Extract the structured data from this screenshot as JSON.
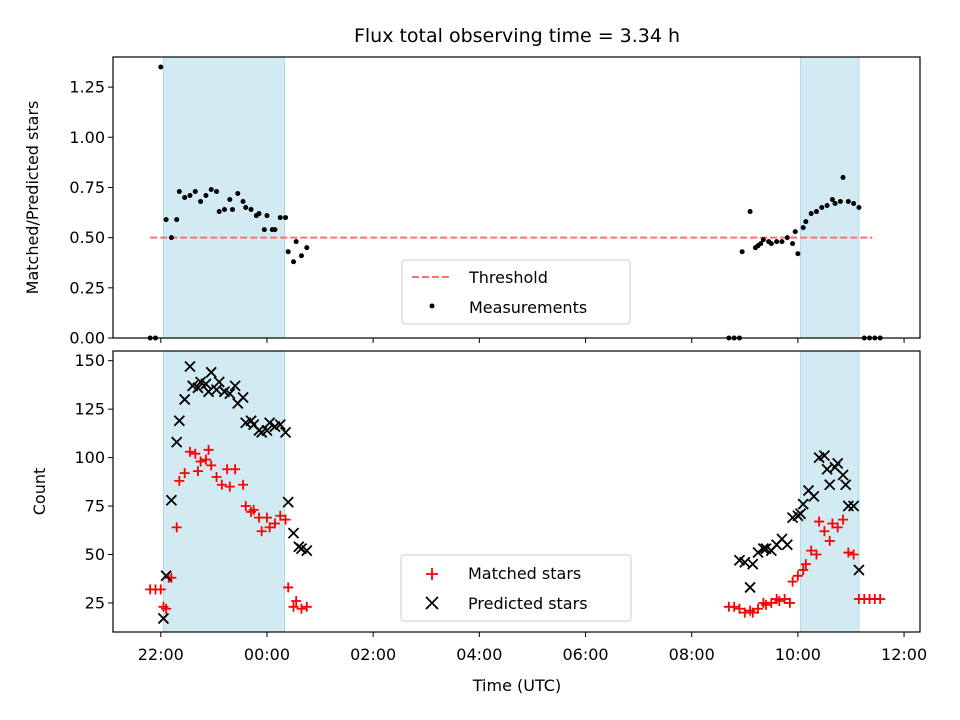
{
  "chart_data": {
    "type": "scatter",
    "title": "Flux total observing time = 3.34 h",
    "xlabel": "Time (UTC)",
    "x_unit": "hours (UTC), continuing past midnight into the next day",
    "x_ticks": [
      {
        "value": 22,
        "label": "22:00"
      },
      {
        "value": 24,
        "label": "00:00"
      },
      {
        "value": 26,
        "label": "02:00"
      },
      {
        "value": 28,
        "label": "04:00"
      },
      {
        "value": 30,
        "label": "06:00"
      },
      {
        "value": 32,
        "label": "08:00"
      },
      {
        "value": 34,
        "label": "10:00"
      },
      {
        "value": 36,
        "label": "12:00"
      }
    ],
    "xlim": [
      21.1,
      36.3
    ],
    "shaded_intervals": [
      [
        22.05,
        24.33
      ],
      [
        34.05,
        35.15
      ]
    ],
    "shade_color": "#add8e6",
    "panels": [
      {
        "ylabel": "Matched/Predicted stars",
        "ylim": [
          0,
          1.4
        ],
        "y_ticks": [
          "0.00",
          "0.25",
          "0.50",
          "0.75",
          "1.00",
          "1.25"
        ],
        "y_tick_values": [
          0,
          0.25,
          0.5,
          0.75,
          1.0,
          1.25
        ],
        "legend_position": "bottom-center",
        "threshold": {
          "name": "Threshold",
          "value": 0.5,
          "x_range": [
            21.8,
            35.4
          ],
          "color": "#ff7070",
          "style": "dashed"
        },
        "series": [
          {
            "name": "Measurements",
            "marker": "dot",
            "color": "#000000",
            "points": [
              [
                21.8,
                0
              ],
              [
                21.9,
                0
              ],
              [
                22.0,
                1.35
              ],
              [
                22.1,
                0.59
              ],
              [
                22.2,
                0.5
              ],
              [
                22.3,
                0.59
              ],
              [
                22.35,
                0.73
              ],
              [
                22.45,
                0.7
              ],
              [
                22.55,
                0.71
              ],
              [
                22.65,
                0.73
              ],
              [
                22.75,
                0.68
              ],
              [
                22.85,
                0.71
              ],
              [
                22.95,
                0.74
              ],
              [
                23.05,
                0.73
              ],
              [
                23.1,
                0.63
              ],
              [
                23.2,
                0.64
              ],
              [
                23.3,
                0.69
              ],
              [
                23.35,
                0.64
              ],
              [
                23.45,
                0.72
              ],
              [
                23.55,
                0.68
              ],
              [
                23.6,
                0.65
              ],
              [
                23.7,
                0.64
              ],
              [
                23.8,
                0.61
              ],
              [
                23.85,
                0.62
              ],
              [
                23.95,
                0.54
              ],
              [
                24.0,
                0.61
              ],
              [
                24.1,
                0.54
              ],
              [
                24.15,
                0.54
              ],
              [
                24.25,
                0.6
              ],
              [
                24.35,
                0.6
              ],
              [
                24.4,
                0.43
              ],
              [
                24.5,
                0.38
              ],
              [
                24.55,
                0.48
              ],
              [
                24.65,
                0.41
              ],
              [
                24.75,
                0.45
              ],
              [
                32.7,
                0
              ],
              [
                32.8,
                0
              ],
              [
                32.9,
                0
              ],
              [
                32.95,
                0.43
              ],
              [
                33.1,
                0.63
              ],
              [
                33.2,
                0.45
              ],
              [
                33.25,
                0.46
              ],
              [
                33.3,
                0.47
              ],
              [
                33.35,
                0.49
              ],
              [
                33.45,
                0.48
              ],
              [
                33.5,
                0.47
              ],
              [
                33.6,
                0.48
              ],
              [
                33.7,
                0.48
              ],
              [
                33.8,
                0.5
              ],
              [
                33.9,
                0.47
              ],
              [
                33.95,
                0.53
              ],
              [
                34.0,
                0.42
              ],
              [
                34.1,
                0.55
              ],
              [
                34.15,
                0.58
              ],
              [
                34.25,
                0.62
              ],
              [
                34.35,
                0.63
              ],
              [
                34.45,
                0.65
              ],
              [
                34.55,
                0.66
              ],
              [
                34.65,
                0.69
              ],
              [
                34.7,
                0.67
              ],
              [
                34.8,
                0.68
              ],
              [
                34.85,
                0.8
              ],
              [
                34.95,
                0.68
              ],
              [
                35.05,
                0.67
              ],
              [
                35.15,
                0.65
              ],
              [
                35.25,
                0
              ],
              [
                35.35,
                0
              ],
              [
                35.45,
                0
              ],
              [
                35.55,
                0
              ]
            ]
          }
        ]
      },
      {
        "ylabel": "Count",
        "ylim": [
          10,
          155
        ],
        "y_ticks": [
          "25",
          "50",
          "75",
          "100",
          "125",
          "150"
        ],
        "y_tick_values": [
          25,
          50,
          75,
          100,
          125,
          150
        ],
        "legend_position": "bottom-center",
        "series": [
          {
            "name": "Matched stars",
            "marker": "plus",
            "color": "#ff0000",
            "points": [
              [
                21.8,
                32
              ],
              [
                21.9,
                32
              ],
              [
                22.0,
                32
              ],
              [
                22.05,
                23
              ],
              [
                22.1,
                22
              ],
              [
                22.15,
                38
              ],
              [
                22.2,
                38
              ],
              [
                22.3,
                64
              ],
              [
                22.35,
                88
              ],
              [
                22.45,
                92
              ],
              [
                22.55,
                103
              ],
              [
                22.65,
                102
              ],
              [
                22.7,
                93
              ],
              [
                22.75,
                98
              ],
              [
                22.85,
                99
              ],
              [
                22.9,
                104
              ],
              [
                22.95,
                96
              ],
              [
                23.05,
                90
              ],
              [
                23.15,
                86
              ],
              [
                23.25,
                94
              ],
              [
                23.3,
                85
              ],
              [
                23.4,
                94
              ],
              [
                23.55,
                86
              ],
              [
                23.6,
                75
              ],
              [
                23.7,
                72
              ],
              [
                23.75,
                73
              ],
              [
                23.85,
                69
              ],
              [
                23.9,
                62
              ],
              [
                24.0,
                69
              ],
              [
                24.05,
                64
              ],
              [
                24.15,
                66
              ],
              [
                24.25,
                70
              ],
              [
                24.35,
                68
              ],
              [
                24.4,
                33
              ],
              [
                24.5,
                23
              ],
              [
                24.55,
                26
              ],
              [
                24.65,
                22
              ],
              [
                24.75,
                23
              ],
              [
                32.7,
                23
              ],
              [
                32.8,
                23
              ],
              [
                32.9,
                22
              ],
              [
                33.0,
                20
              ],
              [
                33.1,
                21
              ],
              [
                33.15,
                20
              ],
              [
                33.25,
                22
              ],
              [
                33.35,
                25
              ],
              [
                33.4,
                24
              ],
              [
                33.5,
                25
              ],
              [
                33.6,
                27
              ],
              [
                33.65,
                26
              ],
              [
                33.75,
                27
              ],
              [
                33.85,
                25
              ],
              [
                33.9,
                36
              ],
              [
                34.0,
                39
              ],
              [
                34.1,
                42
              ],
              [
                34.15,
                45
              ],
              [
                34.25,
                52
              ],
              [
                34.35,
                50
              ],
              [
                34.4,
                67
              ],
              [
                34.5,
                62
              ],
              [
                34.6,
                57
              ],
              [
                34.65,
                66
              ],
              [
                34.75,
                64
              ],
              [
                34.85,
                68
              ],
              [
                34.95,
                51
              ],
              [
                35.05,
                50
              ],
              [
                35.15,
                27
              ],
              [
                35.25,
                27
              ],
              [
                35.35,
                27
              ],
              [
                35.45,
                27
              ],
              [
                35.55,
                27
              ]
            ]
          },
          {
            "name": "Predicted stars",
            "marker": "x",
            "color": "#000000",
            "points": [
              [
                22.05,
                17
              ],
              [
                22.1,
                39
              ],
              [
                22.2,
                78
              ],
              [
                22.3,
                108
              ],
              [
                22.35,
                119
              ],
              [
                22.45,
                130
              ],
              [
                22.55,
                147
              ],
              [
                22.6,
                137
              ],
              [
                22.7,
                136
              ],
              [
                22.75,
                139
              ],
              [
                22.85,
                138
              ],
              [
                22.9,
                134
              ],
              [
                22.95,
                144
              ],
              [
                23.05,
                135
              ],
              [
                23.1,
                139
              ],
              [
                23.2,
                134
              ],
              [
                23.3,
                133
              ],
              [
                23.4,
                137
              ],
              [
                23.45,
                128
              ],
              [
                23.55,
                131
              ],
              [
                23.6,
                118
              ],
              [
                23.7,
                119
              ],
              [
                23.75,
                117
              ],
              [
                23.85,
                114
              ],
              [
                23.9,
                113
              ],
              [
                24.0,
                114
              ],
              [
                24.05,
                118
              ],
              [
                24.15,
                116
              ],
              [
                24.25,
                117
              ],
              [
                24.35,
                113
              ],
              [
                24.4,
                77
              ],
              [
                24.5,
                61
              ],
              [
                24.6,
                54
              ],
              [
                24.65,
                53
              ],
              [
                24.75,
                52
              ],
              [
                32.9,
                47
              ],
              [
                33.0,
                46
              ],
              [
                33.1,
                33
              ],
              [
                33.15,
                45
              ],
              [
                33.25,
                51
              ],
              [
                33.35,
                53
              ],
              [
                33.4,
                53
              ],
              [
                33.5,
                52
              ],
              [
                33.6,
                55
              ],
              [
                33.7,
                58
              ],
              [
                33.8,
                55
              ],
              [
                33.9,
                69
              ],
              [
                34.0,
                70
              ],
              [
                34.05,
                71
              ],
              [
                34.1,
                76
              ],
              [
                34.2,
                83
              ],
              [
                34.3,
                80
              ],
              [
                34.4,
                100
              ],
              [
                34.5,
                101
              ],
              [
                34.55,
                94
              ],
              [
                34.6,
                86
              ],
              [
                34.7,
                95
              ],
              [
                34.75,
                97
              ],
              [
                34.85,
                91
              ],
              [
                34.9,
                86
              ],
              [
                34.95,
                75
              ],
              [
                35.05,
                75
              ],
              [
                35.15,
                42
              ]
            ]
          }
        ]
      }
    ]
  }
}
